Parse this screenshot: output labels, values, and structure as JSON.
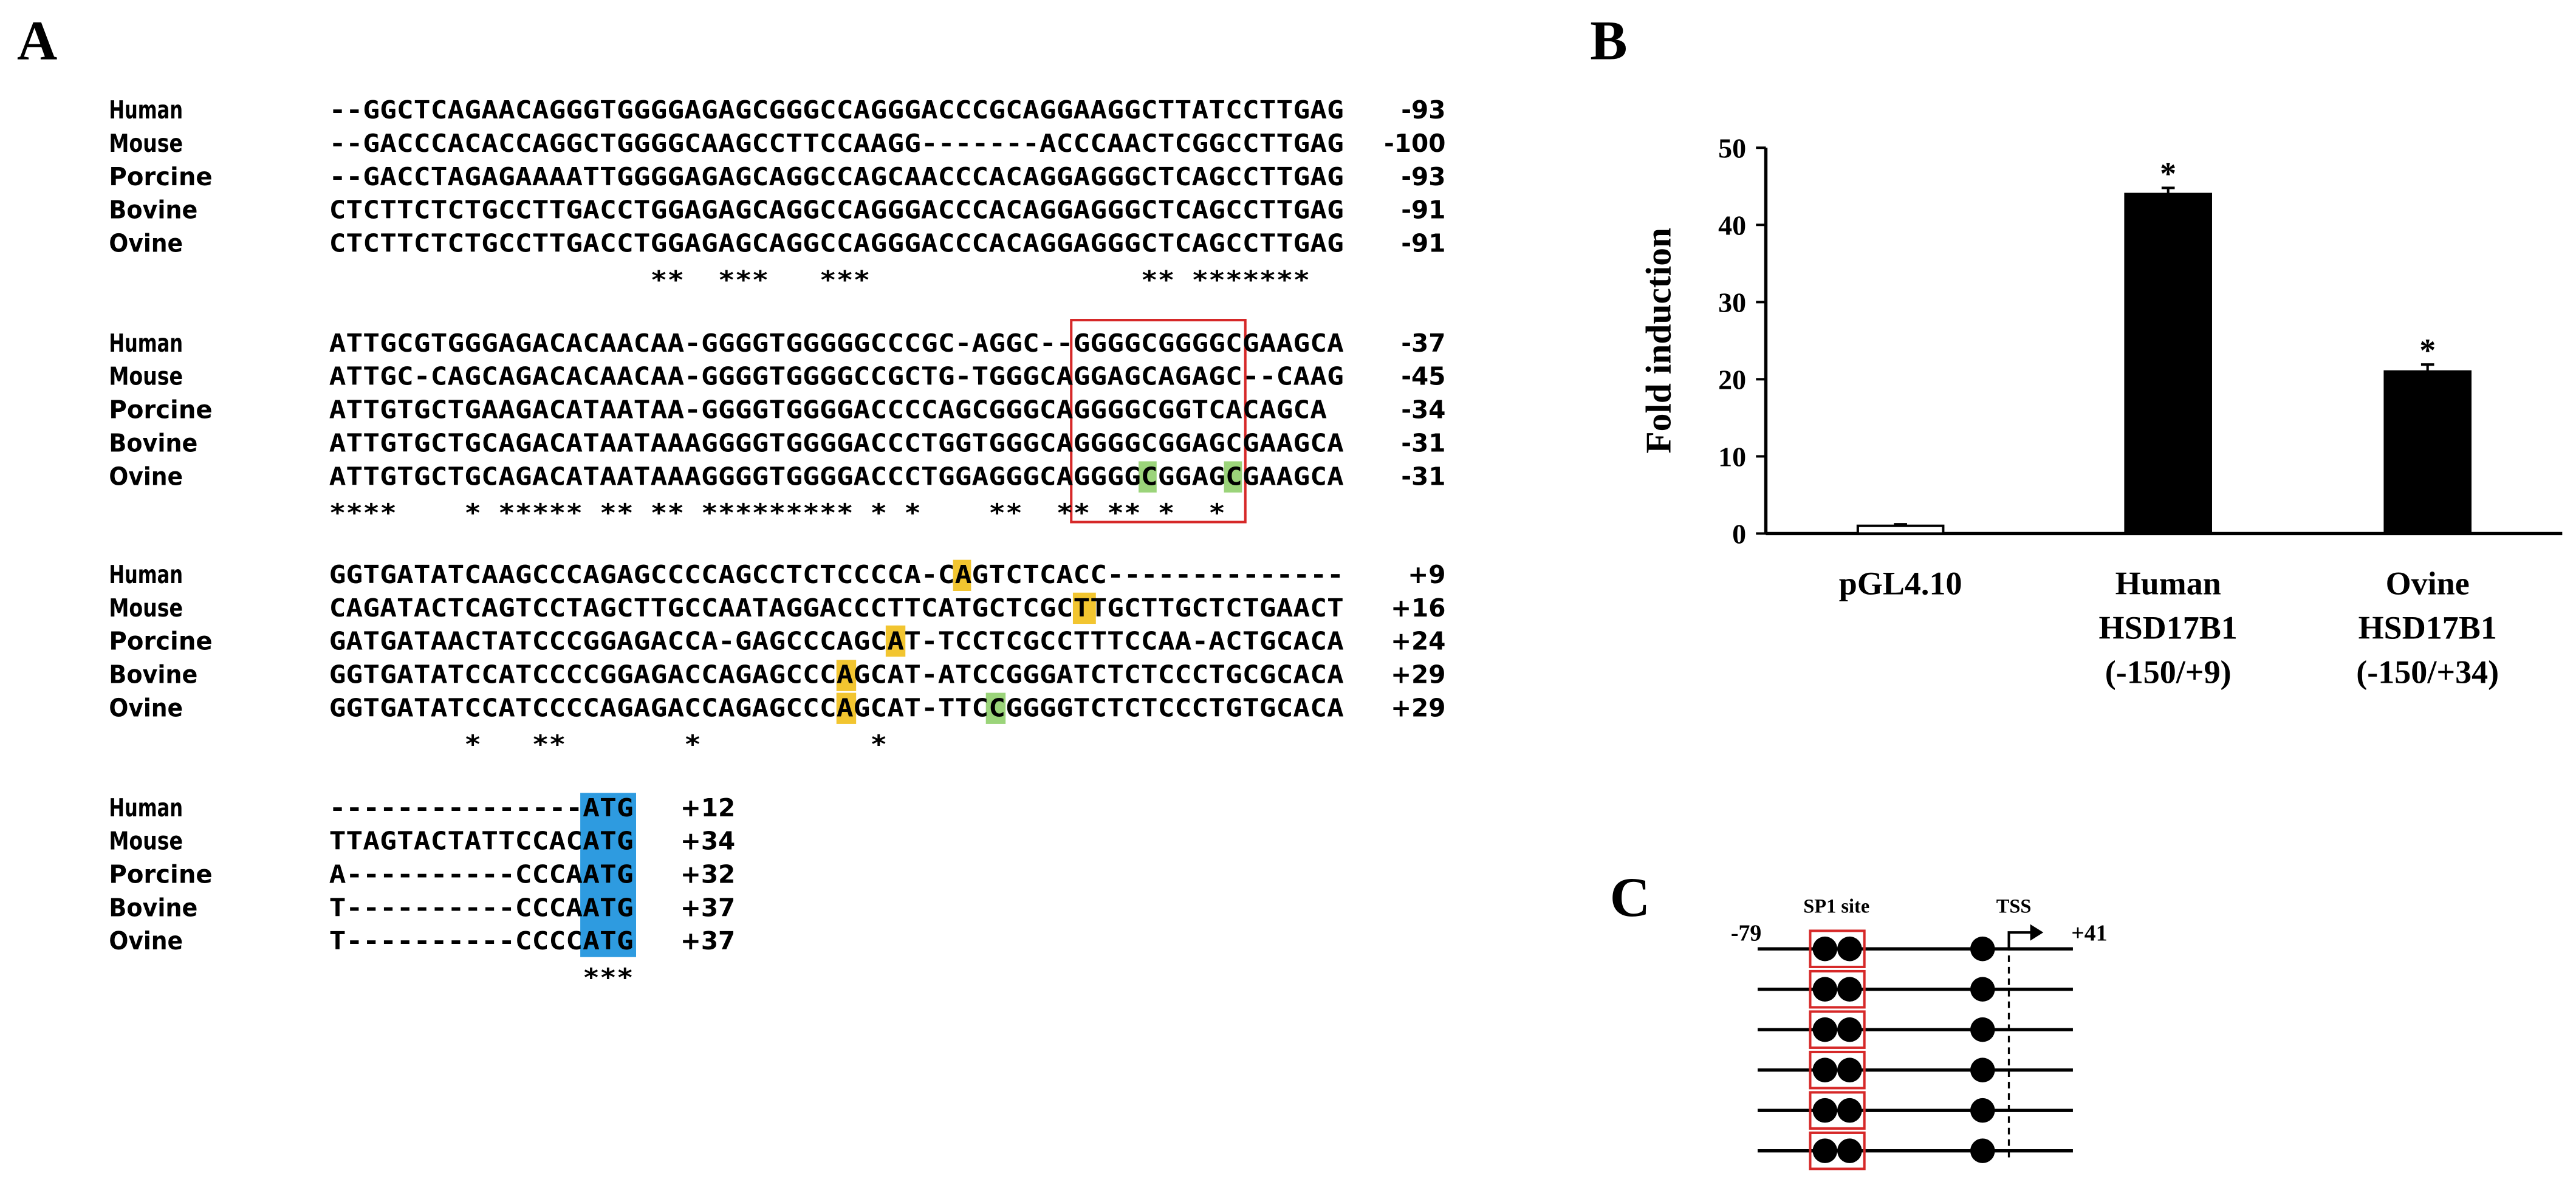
{
  "panels": {
    "a": "A",
    "b": "B",
    "c": "C"
  },
  "alignment": {
    "blocks": [
      {
        "rows": [
          {
            "species": "Human",
            "sequence": "--GGCTCAGAACAGGGTGGGGAGAGCGGGCCAGGGACCCGCAGGAAGGCTTATCCTTGAG",
            "position": "-93"
          },
          {
            "species": "Mouse",
            "sequence": "--GACCCACACCAGGCTGGGGCAAGCCTTCCAAGG-------ACCCAACTCGGCCTTGAG",
            "position": "-100"
          },
          {
            "species": "Porcine",
            "sequence": "--GACCTAGAGAAAATTGGGGAGAGCAGGCCAGCAACCCACAGGAGGGCTCAGCCTTGAG",
            "position": "-93"
          },
          {
            "species": "Bovine",
            "sequence": "CTCTTCTCTGCCTTGACCTGGAGAGCAGGCCAGGGACCCACAGGAGGGCTCAGCCTTGAG",
            "position": "-91"
          },
          {
            "species": "Ovine",
            "sequence": "CTCTTCTCTGCCTTGACCTGGAGAGCAGGCCAGGGACCCACAGGAGGGCTCAGCCTTGAG",
            "position": "-91"
          }
        ],
        "conservation": "                   **  ***   ***                ** *******"
      },
      {
        "rows": [
          {
            "species": "Human",
            "sequence": "ATTGCGTGGGAGACACAACAA-GGGGTGGGGGCCCGC-AGGC--GGGGCGGGGCGAAGCA",
            "position": "-37"
          },
          {
            "species": "Mouse",
            "sequence": "ATTGC-CAGCAGACACAACAA-GGGGTGGGGCCGCTG-TGGGCAGGAGCAGAGC--CAAG",
            "position": "-45"
          },
          {
            "species": "Porcine",
            "sequence": "ATTGTGCTGAAGACATAATAA-GGGGTGGGGACCCCAGCGGGCAGGGGCGGTCACAGCA",
            "position": "-34"
          },
          {
            "species": "Bovine",
            "sequence": "ATTGTGCTGCAGACATAATAAAGGGGTGGGGACCCTGGTGGGCAGGGGCGGAGCGAAGCA",
            "position": "-31"
          },
          {
            "species": "Ovine",
            "sequence": "ATTGTGCTGCAGACATAATAAAGGGGTGGGGACCCTGGAGGGCAGGGGCGGAGCGAAGCA",
            "position": "-31"
          }
        ],
        "conservation": "****    * ***** ** ** ********* * *    **  ** ** *  *"
      },
      {
        "rows": [
          {
            "species": "Human",
            "sequence": "GGTGATATCAAGCCCAGAGCCCCAGCCTCTCCCCA-CAGTCTCACC--------------",
            "position": "+9"
          },
          {
            "species": "Mouse",
            "sequence": "CAGATACTCAGTCCTAGCTTGCCAATAGGACCCTTCATGCTCGCTTGCTTGCTCTGAACT",
            "position": "+16"
          },
          {
            "species": "Porcine",
            "sequence": "GATGATAACTATCCCGGAGACCA-GAGCCCAGCAT-TCCTCGCCTTTCCAA-ACTGCACA",
            "position": "+24"
          },
          {
            "species": "Bovine",
            "sequence": "GGTGATATCCATCCCCGGAGACCAGAGCCCAGCAT-ATCCGGGATCTCTCCCTGCGCACA",
            "position": "+29"
          },
          {
            "species": "Ovine",
            "sequence": "GGTGATATCCATCCCCAGAGACCAGAGCCCAGCAT-TTCCGGGGTCTCTCCCTGTGCACA",
            "position": "+29"
          }
        ],
        "conservation": "        *   **       *          *"
      },
      {
        "rows": [
          {
            "species": "Human",
            "sequence": "---------------ATG",
            "position": "+12"
          },
          {
            "species": "Mouse",
            "sequence": "TTAGTACTATTCCACATG",
            "position": "+34"
          },
          {
            "species": "Porcine",
            "sequence": "A----------CCCAATG",
            "position": "+32"
          },
          {
            "species": "Bovine",
            "sequence": "T----------CCCAATG",
            "position": "+37"
          },
          {
            "species": "Ovine",
            "sequence": "T----------CCCCATG",
            "position": "+37"
          }
        ],
        "conservation": "               ***"
      }
    ]
  },
  "chart_data": {
    "type": "bar",
    "y_label": "Fold induction",
    "categories": [
      [
        "pGL4.10"
      ],
      [
        "Human",
        "HSD17B1",
        "(-150/+9)"
      ],
      [
        "Ovine",
        "HSD17B1",
        "(-150/+34)"
      ]
    ],
    "values": [
      1,
      44,
      21
    ],
    "errors": [
      0.2,
      0.8,
      0.9
    ],
    "colors": [
      "#ffffff",
      "#000000",
      "#000000"
    ],
    "significance": [
      null,
      "*",
      "*"
    ],
    "ylim": [
      0,
      50
    ],
    "yticks": [
      0,
      10,
      20,
      30,
      40,
      50
    ]
  },
  "diagram": {
    "site_label": "SP1 site",
    "tss_label": "TSS",
    "start": "-79",
    "end": "+41"
  }
}
